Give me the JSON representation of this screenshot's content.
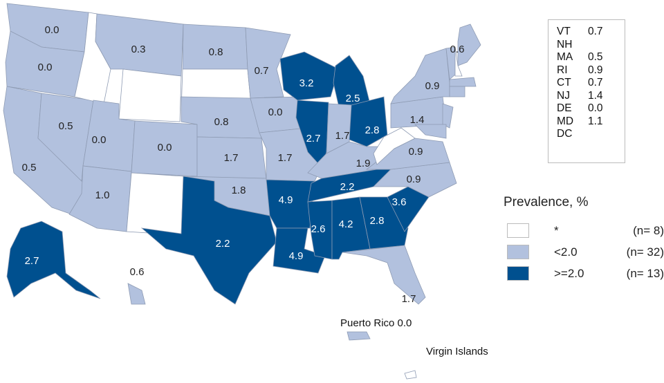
{
  "colors": {
    "no_data": "#ffffff",
    "low": "#b2c1de",
    "high": "#00508f",
    "border": "#8e9bb3"
  },
  "states": [
    {
      "id": "WA",
      "value": "0.0",
      "cat": "low"
    },
    {
      "id": "OR",
      "value": "0.0",
      "cat": "low"
    },
    {
      "id": "CA",
      "value": "0.5",
      "cat": "low"
    },
    {
      "id": "NV",
      "value": "0.5",
      "cat": "low"
    },
    {
      "id": "ID",
      "value": "",
      "cat": "no_data"
    },
    {
      "id": "MT",
      "value": "0.3",
      "cat": "low"
    },
    {
      "id": "WY",
      "value": "",
      "cat": "no_data"
    },
    {
      "id": "UT",
      "value": "0.0",
      "cat": "low"
    },
    {
      "id": "CO",
      "value": "0.0",
      "cat": "low"
    },
    {
      "id": "AZ",
      "value": "1.0",
      "cat": "low"
    },
    {
      "id": "NM",
      "value": "",
      "cat": "no_data"
    },
    {
      "id": "ND",
      "value": "0.8",
      "cat": "low"
    },
    {
      "id": "SD",
      "value": "",
      "cat": "no_data"
    },
    {
      "id": "NE",
      "value": "0.8",
      "cat": "low"
    },
    {
      "id": "KS",
      "value": "1.7",
      "cat": "low"
    },
    {
      "id": "OK",
      "value": "1.8",
      "cat": "low"
    },
    {
      "id": "TX",
      "value": "2.2",
      "cat": "high"
    },
    {
      "id": "MN",
      "value": "0.7",
      "cat": "low"
    },
    {
      "id": "IA",
      "value": "0.0",
      "cat": "low"
    },
    {
      "id": "MO",
      "value": "1.7",
      "cat": "low"
    },
    {
      "id": "AR",
      "value": "4.9",
      "cat": "high"
    },
    {
      "id": "LA",
      "value": "4.9",
      "cat": "high"
    },
    {
      "id": "WI",
      "value": "3.2",
      "cat": "high"
    },
    {
      "id": "IL",
      "value": "2.7",
      "cat": "high"
    },
    {
      "id": "MI",
      "value": "2.5",
      "cat": "high"
    },
    {
      "id": "IN",
      "value": "1.7",
      "cat": "low"
    },
    {
      "id": "OH",
      "value": "2.8",
      "cat": "high"
    },
    {
      "id": "KY",
      "value": "1.9",
      "cat": "low"
    },
    {
      "id": "TN",
      "value": "2.2",
      "cat": "high"
    },
    {
      "id": "MS",
      "value": "2.6",
      "cat": "high"
    },
    {
      "id": "AL",
      "value": "4.2",
      "cat": "high"
    },
    {
      "id": "GA",
      "value": "2.8",
      "cat": "high"
    },
    {
      "id": "SC",
      "value": "3.6",
      "cat": "high"
    },
    {
      "id": "NC",
      "value": "0.9",
      "cat": "low"
    },
    {
      "id": "VA",
      "value": "0.9",
      "cat": "low"
    },
    {
      "id": "WV",
      "value": "",
      "cat": "no_data"
    },
    {
      "id": "PA",
      "value": "1.4",
      "cat": "low"
    },
    {
      "id": "NY",
      "value": "0.9",
      "cat": "low"
    },
    {
      "id": "FL",
      "value": "1.7",
      "cat": "low"
    },
    {
      "id": "ME",
      "value": "0.6",
      "cat": "low"
    },
    {
      "id": "VT",
      "value": "",
      "cat": "low"
    },
    {
      "id": "NH",
      "value": "",
      "cat": "no_data"
    },
    {
      "id": "MA",
      "value": "",
      "cat": "low"
    },
    {
      "id": "CT",
      "value": "",
      "cat": "low"
    },
    {
      "id": "NJ",
      "value": "",
      "cat": "low"
    },
    {
      "id": "MD",
      "value": "",
      "cat": "low"
    },
    {
      "id": "AK",
      "value": "2.7",
      "cat": "high"
    },
    {
      "id": "HI",
      "value": "0.6",
      "cat": "low"
    },
    {
      "id": "PR",
      "value": "",
      "cat": "low"
    },
    {
      "id": "VI",
      "value": "",
      "cat": "no_data"
    }
  ],
  "inset": [
    {
      "abbr": "VT",
      "value": "0.7"
    },
    {
      "abbr": "NH",
      "value": ""
    },
    {
      "abbr": "MA",
      "value": "0.5"
    },
    {
      "abbr": "RI",
      "value": "0.9"
    },
    {
      "abbr": "CT",
      "value": "0.7"
    },
    {
      "abbr": "NJ",
      "value": "1.4"
    },
    {
      "abbr": "DE",
      "value": "0.0"
    },
    {
      "abbr": "MD",
      "value": "1.1"
    },
    {
      "abbr": "DC",
      "value": ""
    }
  ],
  "territories": {
    "pr": "Puerto Rico 0.0",
    "vi": "Virgin Islands"
  },
  "legend": {
    "title": "Prevalence, %",
    "items": [
      {
        "label": "*",
        "count": "(n=  8)",
        "cat": "no_data"
      },
      {
        "label": "<2.0",
        "count": "(n= 32)",
        "cat": "low"
      },
      {
        "label": ">=2.0",
        "count": "(n= 13)",
        "cat": "high"
      }
    ]
  }
}
